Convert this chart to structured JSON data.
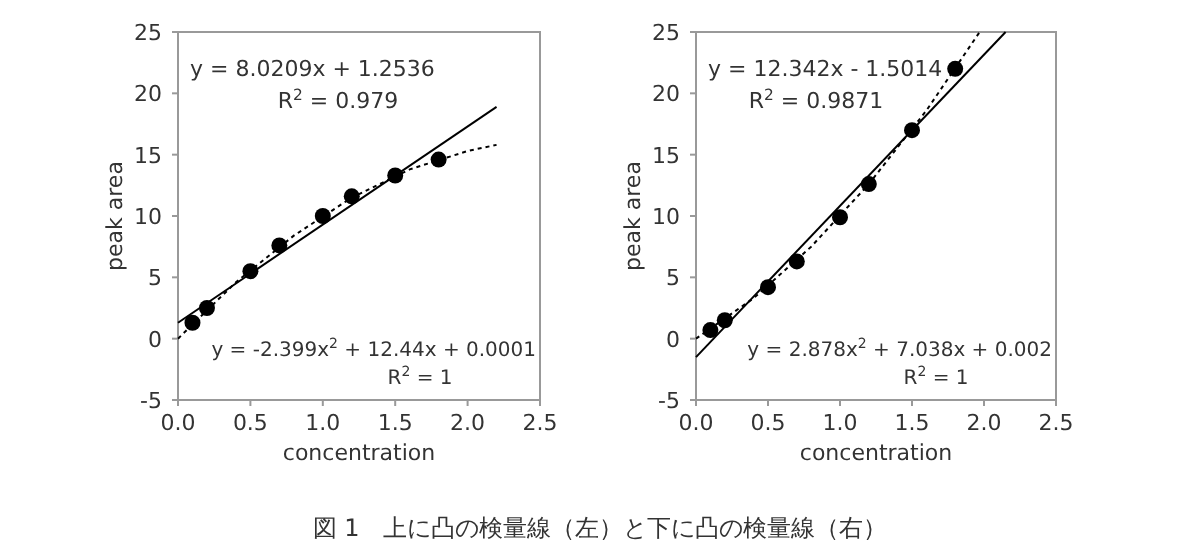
{
  "chart_data": [
    {
      "type": "scatter",
      "xlabel": "concentration",
      "ylabel": "peak area",
      "xlim": [
        0,
        2.5
      ],
      "ylim": [
        -5,
        25
      ],
      "xticks": [
        {
          "value": 0,
          "label": "0.0"
        },
        {
          "value": 0.5,
          "label": "0.5"
        },
        {
          "value": 1,
          "label": "1.0"
        },
        {
          "value": 1.5,
          "label": "1.5"
        },
        {
          "value": 2,
          "label": "2.0"
        },
        {
          "value": 2.5,
          "label": "2.5"
        }
      ],
      "yticks": [
        -5,
        0,
        5,
        10,
        15,
        20,
        25
      ],
      "series": [
        {
          "type": "scatter",
          "color": "#000000",
          "marker": "circle",
          "x": [
            0.1,
            0.2,
            0.5,
            0.7,
            1.0,
            1.2,
            1.5,
            1.8
          ],
          "values": [
            1.3,
            2.5,
            5.5,
            7.6,
            10.0,
            11.6,
            13.3,
            14.6
          ]
        },
        {
          "type": "line",
          "color": "#000000",
          "line_style": "solid",
          "x": [
            0,
            2.2
          ],
          "values": [
            1.3,
            18.9
          ]
        },
        {
          "type": "line",
          "color": "#000000",
          "line_style": "dotted",
          "x": [
            0,
            0.4,
            0.8,
            1.2,
            1.6,
            2.0,
            2.2
          ],
          "values": [
            0,
            4.6,
            8.4,
            11.5,
            13.8,
            15.3,
            15.8
          ]
        }
      ],
      "annotations": [
        "y = 8.0209x + 1.2536",
        "R$^{2}$ = 0.979",
        "y = -2.399x$^{2}$ + 12.44x + 0.0001",
        "R$^{2}$ = 1"
      ]
    },
    {
      "type": "scatter",
      "xlabel": "concentration",
      "ylabel": "peak area",
      "xlim": [
        0,
        2.5
      ],
      "ylim": [
        -5,
        25
      ],
      "xticks": [
        {
          "value": 0,
          "label": "0.0"
        },
        {
          "value": 0.5,
          "label": "0.5"
        },
        {
          "value": 1,
          "label": "1.0"
        },
        {
          "value": 1.5,
          "label": "1.5"
        },
        {
          "value": 2,
          "label": "2.0"
        },
        {
          "value": 2.5,
          "label": "2.5"
        }
      ],
      "yticks": [
        -5,
        0,
        5,
        10,
        15,
        20,
        25
      ],
      "series": [
        {
          "type": "scatter",
          "color": "#000000",
          "marker": "circle",
          "x": [
            0.1,
            0.2,
            0.5,
            0.7,
            1.0,
            1.2,
            1.5,
            1.8
          ],
          "values": [
            0.7,
            1.5,
            4.2,
            6.3,
            9.9,
            12.6,
            17.0,
            22.0
          ]
        },
        {
          "type": "line",
          "color": "#000000",
          "line_style": "solid",
          "x": [
            0,
            2.15
          ],
          "values": [
            -1.5,
            25.0
          ]
        },
        {
          "type": "line",
          "color": "#000000",
          "line_style": "dotted",
          "x": [
            0,
            0.4,
            0.8,
            1.2,
            1.6,
            1.97
          ],
          "values": [
            0,
            3.3,
            7.5,
            12.6,
            18.6,
            25.0
          ]
        }
      ],
      "annotations": [
        "y = 12.342x - 1.5014",
        "R$^{2}$ = 0.9871",
        "y = 2.878x$^{2}$ + 7.038x + 0.002",
        "R$^{2}$ = 1"
      ]
    },
    {
      "type": "other",
      "annotations": [
        "図 1　上に凸の検量線（左）と下に凸の検量線（右）"
      ]
    }
  ]
}
